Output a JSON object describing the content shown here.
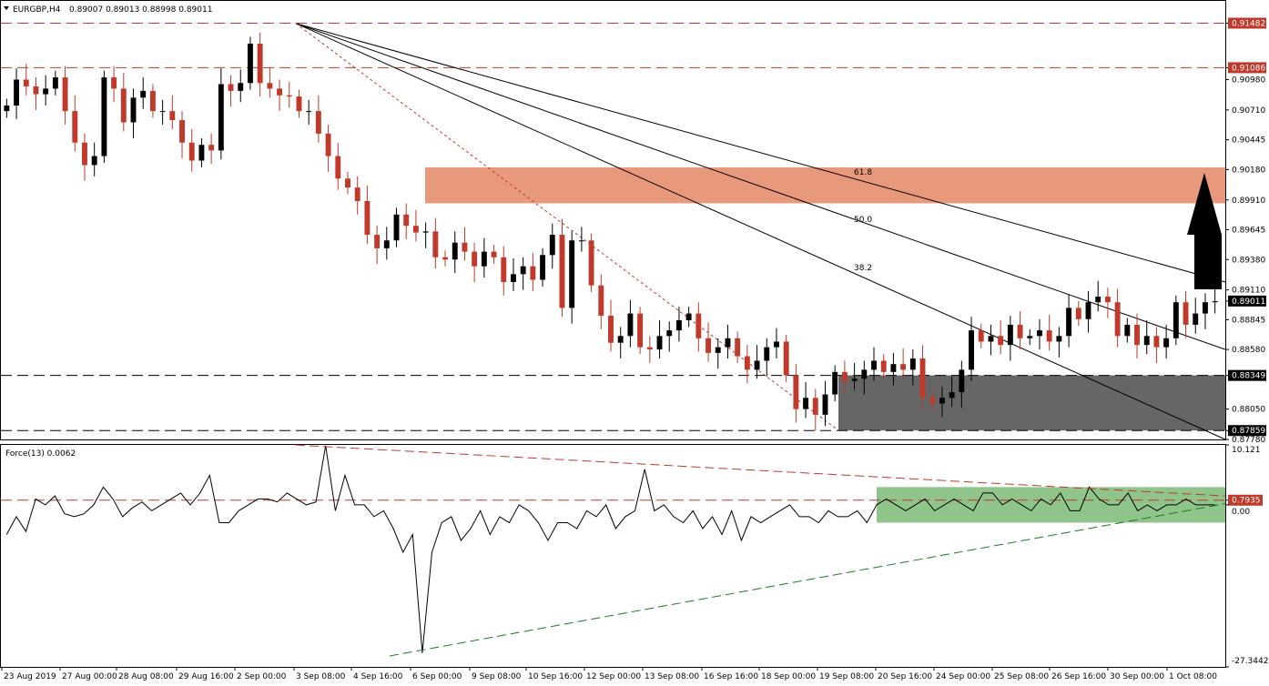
{
  "header": {
    "symbol_label": "EURGBP,H4",
    "ohlc": "0.89007 0.89013 0.88998 0.89011",
    "indicator_label": "Force(13) 0.0062"
  },
  "colors": {
    "bull": "#000000",
    "bear": "#c0392b",
    "resistance_zone": "#e8987b",
    "support_zone": "#666666",
    "force_zone": "#8fc48a",
    "dashed_red": "#c0392b",
    "dashed_black": "#000000",
    "trend_green": "#1a7a1a",
    "price_tag": "#c0392b"
  },
  "chart_data": [
    {
      "type": "candlestick",
      "title": "EURGBP,H4",
      "ylim": [
        0.8778,
        0.9168
      ],
      "y_ticks": [
        "0.91482",
        "0.91086",
        "0.90980",
        "0.90710",
        "0.90445",
        "0.90180",
        "0.89910",
        "0.89645",
        "0.89380",
        "0.89110",
        "0.89011",
        "0.88845",
        "0.88580",
        "0.88349",
        "0.88050",
        "0.87859",
        "0.87780"
      ],
      "x_labels": [
        "23 Aug 2019",
        "27 Aug 00:00",
        "28 Aug 08:00",
        "29 Aug 16:00",
        "2 Sep 00:00",
        "3 Sep 08:00",
        "4 Sep 16:00",
        "6 Sep 00:00",
        "9 Sep 08:00",
        "10 Sep 16:00",
        "12 Sep 00:00",
        "13 Sep 08:00",
        "16 Sep 16:00",
        "18 Sep 00:00",
        "19 Sep 08:00",
        "20 Sep 16:00",
        "24 Sep 00:00",
        "25 Sep 08:00",
        "26 Sep 16:00",
        "30 Sep 00:00",
        "1 Oct 08:00"
      ],
      "closes": [
        0.9075,
        0.9098,
        0.9092,
        0.9085,
        0.909,
        0.91,
        0.907,
        0.9042,
        0.9022,
        0.903,
        0.91,
        0.909,
        0.906,
        0.9082,
        0.9088,
        0.907,
        0.907,
        0.9062,
        0.9042,
        0.9026,
        0.904,
        0.9035,
        0.9094,
        0.9088,
        0.9095,
        0.913,
        0.9095,
        0.909,
        0.9084,
        0.9083,
        0.907,
        0.907,
        0.905,
        0.903,
        0.901,
        0.9002,
        0.899,
        0.896,
        0.8948,
        0.8955,
        0.8978,
        0.8968,
        0.8962,
        0.8963,
        0.894,
        0.8938,
        0.8953,
        0.8945,
        0.8932,
        0.8945,
        0.894,
        0.8918,
        0.8925,
        0.8932,
        0.892,
        0.8942,
        0.896,
        0.8895,
        0.8955,
        0.8955,
        0.8915,
        0.8888,
        0.8864,
        0.887,
        0.889,
        0.886,
        0.8858,
        0.887,
        0.8875,
        0.8884,
        0.889,
        0.8868,
        0.8855,
        0.886,
        0.8868,
        0.8852,
        0.884,
        0.8848,
        0.886,
        0.8865,
        0.8835,
        0.8805,
        0.8815,
        0.88,
        0.8818,
        0.8838,
        0.883,
        0.8832,
        0.884,
        0.8848,
        0.8838,
        0.8845,
        0.884,
        0.885,
        0.8815,
        0.881,
        0.8815,
        0.882,
        0.884,
        0.8875,
        0.8865,
        0.887,
        0.8862,
        0.888,
        0.8868,
        0.887,
        0.8875,
        0.8865,
        0.887,
        0.8895,
        0.8885,
        0.89,
        0.8905,
        0.89,
        0.887,
        0.888,
        0.8862,
        0.887,
        0.886,
        0.8868,
        0.89,
        0.888,
        0.889,
        0.89,
        0.8901
      ],
      "support_levels": [
        0.88349,
        0.87859
      ],
      "resistance_levels": [
        0.91482,
        0.91086
      ],
      "last_price": 0.89011,
      "fib_labels": [
        "61.8",
        "50.0",
        "38.2"
      ],
      "resistance_zone": [
        0.8988,
        0.902
      ],
      "support_zone": [
        0.8786,
        0.8835
      ]
    },
    {
      "type": "line",
      "title": "Force(13) 0.0062",
      "ylim": [
        -27.3442,
        10.121
      ],
      "y_ticks": [
        "10.121",
        "0.7935",
        "0.00",
        "-27.3442"
      ],
      "values": [
        -5,
        -2,
        -4.5,
        1,
        0,
        1.5,
        -1.5,
        -2,
        -1.5,
        0,
        3,
        1,
        -2,
        -0.5,
        0.5,
        -1,
        0,
        1,
        2,
        0,
        2,
        5,
        -3,
        -3,
        -1,
        0,
        1,
        1,
        0.5,
        2,
        1,
        0,
        0.5,
        10,
        -1,
        5,
        0,
        0,
        -2,
        -1,
        -4,
        -8,
        -5,
        -25,
        -8,
        -3,
        -2,
        -6,
        -4,
        -1,
        -5,
        -2,
        -3,
        0,
        -1,
        -3,
        -6,
        -3,
        -3,
        -4,
        -1,
        -2,
        0,
        -4,
        -2,
        -1,
        6,
        -1,
        0,
        -2,
        -3,
        -1,
        -4,
        -2,
        -5,
        -1,
        -6,
        -2,
        -3,
        -2,
        -1,
        0,
        -2,
        -2,
        -3,
        -1,
        -2,
        -2,
        -1,
        -3,
        0,
        1,
        0,
        -1,
        0,
        1,
        -1,
        0,
        1,
        0,
        -1,
        2,
        2,
        0,
        1,
        0,
        -1,
        1,
        0,
        2,
        -1,
        -1,
        3,
        1,
        0,
        0,
        2,
        -1,
        0,
        -1,
        0,
        0,
        1,
        0,
        0,
        0
      ],
      "reference_level": 0.7935,
      "zone": [
        -3,
        3
      ]
    }
  ]
}
